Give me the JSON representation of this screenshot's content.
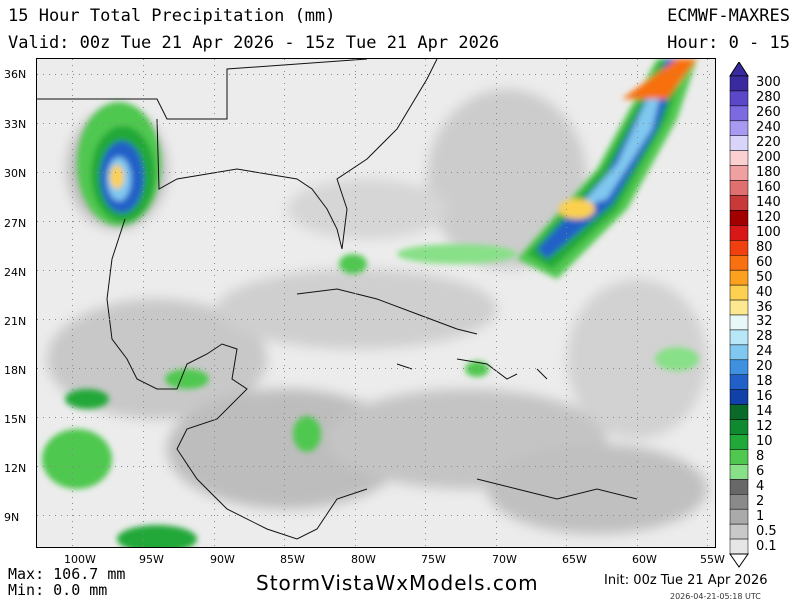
{
  "header": {
    "title": "15 Hour Total Precipitation (mm)",
    "valid": "Valid: 00z Tue 21 Apr 2026 - 15z Tue 21 Apr 2026",
    "model": "ECMWF-MAXRES",
    "hour": "Hour: 0 - 15"
  },
  "map": {
    "lat_labels": [
      "36N",
      "33N",
      "30N",
      "27N",
      "24N",
      "21N",
      "18N",
      "15N",
      "12N",
      "9N"
    ],
    "lon_labels": [
      "100W",
      "95W",
      "90W",
      "85W",
      "80W",
      "75W",
      "70W",
      "65W",
      "60W",
      "55W"
    ]
  },
  "legend": {
    "entries": [
      {
        "label": "300",
        "color": "#3a2aa0"
      },
      {
        "label": "280",
        "color": "#5a48c8"
      },
      {
        "label": "260",
        "color": "#7c6ae0"
      },
      {
        "label": "240",
        "color": "#a89af0"
      },
      {
        "label": "220",
        "color": "#d8d4fa"
      },
      {
        "label": "200",
        "color": "#fad0d0"
      },
      {
        "label": "180",
        "color": "#f0a0a0"
      },
      {
        "label": "160",
        "color": "#e07070"
      },
      {
        "label": "140",
        "color": "#c83a3a"
      },
      {
        "label": "120",
        "color": "#a00000"
      },
      {
        "label": "100",
        "color": "#d81818"
      },
      {
        "label": "80",
        "color": "#f04010"
      },
      {
        "label": "60",
        "color": "#f87010"
      },
      {
        "label": "50",
        "color": "#fca020"
      },
      {
        "label": "40",
        "color": "#fcd050"
      },
      {
        "label": "36",
        "color": "#fce890"
      },
      {
        "label": "32",
        "color": "#e8f8f8"
      },
      {
        "label": "28",
        "color": "#b8e8f8"
      },
      {
        "label": "24",
        "color": "#80c8f0"
      },
      {
        "label": "20",
        "color": "#4090e0"
      },
      {
        "label": "18",
        "color": "#2060c8"
      },
      {
        "label": "16",
        "color": "#1040a8"
      },
      {
        "label": "14",
        "color": "#0a6a2a"
      },
      {
        "label": "12",
        "color": "#108a30"
      },
      {
        "label": "10",
        "color": "#20a838"
      },
      {
        "label": "8",
        "color": "#50c850"
      },
      {
        "label": "6",
        "color": "#88e088"
      },
      {
        "label": "4",
        "color": "#686868"
      },
      {
        "label": "2",
        "color": "#8a8a8a"
      },
      {
        "label": "1",
        "color": "#aaaaaa"
      },
      {
        "label": "0.5",
        "color": "#c8c8c8"
      },
      {
        "label": "0.1",
        "color": "#e6e6e6"
      }
    ]
  },
  "footer": {
    "max": "Max: 106.7 mm",
    "min": "Min: 0.0 mm",
    "site": "StormVistaWxModels.com",
    "init": "Init: 00z Tue 21 Apr 2026",
    "stamp": "2026-04-21-05:18 UTC"
  }
}
